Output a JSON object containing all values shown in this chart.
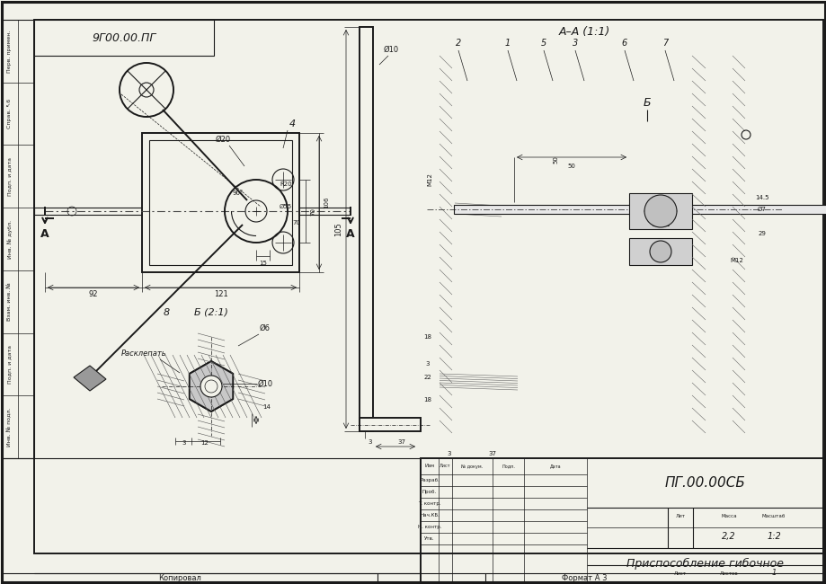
{
  "bg_color": "#f2f2ea",
  "line_color": "#1a1a1a",
  "white": "#ffffff",
  "gray_hatch": "#888888",
  "gray_fill": "#cccccc",
  "title": "ПГ.00.00СБ",
  "drawing_title": "Приспособление гибочное",
  "mass": "2,2",
  "scale": "1:2",
  "sheet": "1",
  "sheets": "1",
  "format": "Формат А 3",
  "copied": "Копировал",
  "lit": "Лит",
  "massa_hdr": "Масса",
  "masshtab_hdr": "Масштаб",
  "list_hdr": "Лист",
  "listov_hdr": "Листов",
  "stamp_rows": [
    "Изм",
    "Разраб.",
    "Проб.",
    "Т. контр.",
    "Нач.КБ.",
    "Н. контр.",
    "Утв."
  ],
  "stamp_col_hdrs": [
    "Лист",
    "№ докум.",
    "Подп.",
    "Дата"
  ],
  "left_stamp": [
    "Перв. примен.",
    "Справ. ↖6",
    "Подп. и дата",
    "Инв. № дубл.",
    "Взам. инв. №",
    "Подп. и дата",
    "Инв. № подл."
  ],
  "section_aa": "А–А (1:1)",
  "section_b": "Б (2:1)",
  "view_title": "9Г00.00.ПГ",
  "note_rasklep": "Расклепать"
}
